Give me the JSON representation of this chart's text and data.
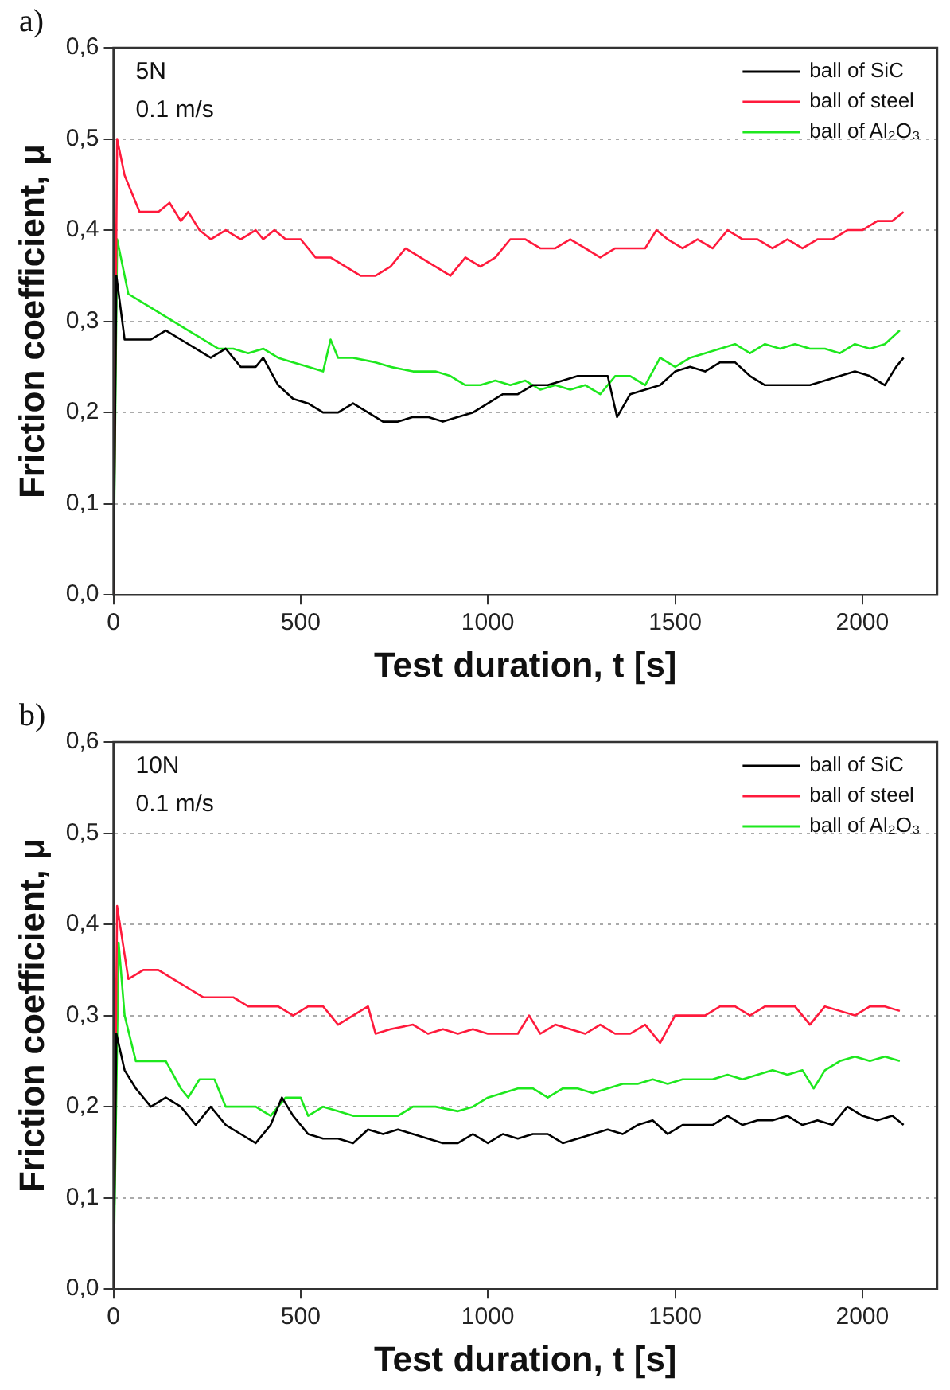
{
  "chart_data": [
    {
      "type": "line",
      "xlabel": "Test duration, t [s]",
      "ylabel": "Friction coefficient, μ",
      "annotations": [
        "a)",
        "5N",
        "0.1 m/s"
      ],
      "xlim": [
        0,
        2200
      ],
      "xticks": [
        0,
        500,
        1000,
        1500,
        2000
      ],
      "ylim": [
        0,
        0.6
      ],
      "yticks": [
        {
          "value": 0,
          "label": "0,0"
        },
        {
          "value": 0.1,
          "label": "0,1"
        },
        {
          "value": 0.2,
          "label": "0,2"
        },
        {
          "value": 0.3,
          "label": "0,3"
        },
        {
          "value": 0.4,
          "label": "0,4"
        },
        {
          "value": 0.5,
          "label": "0,5"
        },
        {
          "value": 0.6,
          "label": "0,6"
        }
      ],
      "grid": "y",
      "legend": "top right",
      "series": [
        {
          "name": "ball of SiC",
          "color": "#000000",
          "x": [
            0,
            8,
            30,
            60,
            100,
            140,
            180,
            220,
            260,
            300,
            340,
            380,
            400,
            440,
            480,
            520,
            560,
            600,
            640,
            680,
            720,
            760,
            800,
            840,
            880,
            920,
            960,
            1000,
            1040,
            1080,
            1120,
            1160,
            1200,
            1240,
            1280,
            1320,
            1345,
            1380,
            1420,
            1460,
            1500,
            1540,
            1580,
            1620,
            1660,
            1700,
            1740,
            1780,
            1820,
            1860,
            1900,
            1940,
            1980,
            2020,
            2060,
            2090,
            2110
          ],
          "values": [
            0,
            0.35,
            0.28,
            0.28,
            0.28,
            0.29,
            0.28,
            0.27,
            0.26,
            0.27,
            0.25,
            0.25,
            0.26,
            0.23,
            0.215,
            0.21,
            0.2,
            0.2,
            0.21,
            0.2,
            0.19,
            0.19,
            0.195,
            0.195,
            0.19,
            0.195,
            0.2,
            0.21,
            0.22,
            0.22,
            0.23,
            0.23,
            0.235,
            0.24,
            0.24,
            0.24,
            0.195,
            0.22,
            0.225,
            0.23,
            0.245,
            0.25,
            0.245,
            0.255,
            0.255,
            0.24,
            0.23,
            0.23,
            0.23,
            0.23,
            0.235,
            0.24,
            0.245,
            0.24,
            0.23,
            0.25,
            0.26
          ]
        },
        {
          "name": "ball of steel",
          "color": "#ff1a3c",
          "x": [
            0,
            10,
            30,
            70,
            120,
            150,
            180,
            200,
            230,
            260,
            300,
            340,
            380,
            400,
            430,
            460,
            500,
            540,
            580,
            620,
            660,
            700,
            740,
            780,
            820,
            860,
            900,
            940,
            980,
            1020,
            1060,
            1100,
            1140,
            1180,
            1220,
            1260,
            1300,
            1340,
            1380,
            1420,
            1450,
            1480,
            1520,
            1560,
            1600,
            1640,
            1680,
            1720,
            1760,
            1800,
            1840,
            1880,
            1920,
            1960,
            2000,
            2040,
            2080,
            2110
          ],
          "values": [
            0,
            0.5,
            0.46,
            0.42,
            0.42,
            0.43,
            0.41,
            0.42,
            0.4,
            0.39,
            0.4,
            0.39,
            0.4,
            0.39,
            0.4,
            0.39,
            0.39,
            0.37,
            0.37,
            0.36,
            0.35,
            0.35,
            0.36,
            0.38,
            0.37,
            0.36,
            0.35,
            0.37,
            0.36,
            0.37,
            0.39,
            0.39,
            0.38,
            0.38,
            0.39,
            0.38,
            0.37,
            0.38,
            0.38,
            0.38,
            0.4,
            0.39,
            0.38,
            0.39,
            0.38,
            0.4,
            0.39,
            0.39,
            0.38,
            0.39,
            0.38,
            0.39,
            0.39,
            0.4,
            0.4,
            0.41,
            0.41,
            0.42
          ]
        },
        {
          "name": "ball of Al₂O₃",
          "color": "#1ee81e",
          "x": [
            0,
            10,
            40,
            80,
            120,
            160,
            200,
            240,
            280,
            320,
            360,
            400,
            440,
            480,
            520,
            560,
            580,
            600,
            640,
            700,
            740,
            800,
            860,
            900,
            940,
            980,
            1020,
            1060,
            1100,
            1140,
            1180,
            1220,
            1260,
            1300,
            1340,
            1380,
            1420,
            1460,
            1500,
            1540,
            1580,
            1620,
            1660,
            1700,
            1740,
            1780,
            1820,
            1860,
            1900,
            1940,
            1980,
            2020,
            2060,
            2100
          ],
          "values": [
            0,
            0.39,
            0.33,
            0.32,
            0.31,
            0.3,
            0.29,
            0.28,
            0.27,
            0.27,
            0.265,
            0.27,
            0.26,
            0.255,
            0.25,
            0.245,
            0.28,
            0.26,
            0.26,
            0.255,
            0.25,
            0.245,
            0.245,
            0.24,
            0.23,
            0.23,
            0.235,
            0.23,
            0.235,
            0.225,
            0.23,
            0.225,
            0.23,
            0.22,
            0.24,
            0.24,
            0.23,
            0.26,
            0.25,
            0.26,
            0.265,
            0.27,
            0.275,
            0.265,
            0.275,
            0.27,
            0.275,
            0.27,
            0.27,
            0.265,
            0.275,
            0.27,
            0.275,
            0.29
          ]
        }
      ]
    },
    {
      "type": "line",
      "xlabel": "Test duration, t [s]",
      "ylabel": "Friction coefficient, μ",
      "annotations": [
        "b)",
        "10N",
        "0.1 m/s"
      ],
      "xlim": [
        0,
        2200
      ],
      "xticks": [
        0,
        500,
        1000,
        1500,
        2000
      ],
      "ylim": [
        0,
        0.6
      ],
      "yticks": [
        {
          "value": 0,
          "label": "0,0"
        },
        {
          "value": 0.1,
          "label": "0,1"
        },
        {
          "value": 0.2,
          "label": "0,2"
        },
        {
          "value": 0.3,
          "label": "0,3"
        },
        {
          "value": 0.4,
          "label": "0,4"
        },
        {
          "value": 0.5,
          "label": "0,5"
        },
        {
          "value": 0.6,
          "label": "0,6"
        }
      ],
      "grid": "y",
      "legend": "top right",
      "series": [
        {
          "name": "ball of SiC",
          "color": "#000000",
          "x": [
            0,
            8,
            30,
            60,
            100,
            140,
            180,
            220,
            260,
            300,
            340,
            380,
            420,
            450,
            480,
            520,
            560,
            600,
            640,
            680,
            720,
            760,
            800,
            840,
            880,
            920,
            960,
            1000,
            1040,
            1080,
            1120,
            1160,
            1200,
            1240,
            1280,
            1320,
            1360,
            1400,
            1440,
            1480,
            1520,
            1560,
            1600,
            1640,
            1680,
            1720,
            1760,
            1800,
            1840,
            1880,
            1920,
            1960,
            2000,
            2040,
            2080,
            2110
          ],
          "values": [
            0,
            0.28,
            0.24,
            0.22,
            0.2,
            0.21,
            0.2,
            0.18,
            0.2,
            0.18,
            0.17,
            0.16,
            0.18,
            0.21,
            0.19,
            0.17,
            0.165,
            0.165,
            0.16,
            0.175,
            0.17,
            0.175,
            0.17,
            0.165,
            0.16,
            0.16,
            0.17,
            0.16,
            0.17,
            0.165,
            0.17,
            0.17,
            0.16,
            0.165,
            0.17,
            0.175,
            0.17,
            0.18,
            0.185,
            0.17,
            0.18,
            0.18,
            0.18,
            0.19,
            0.18,
            0.185,
            0.185,
            0.19,
            0.18,
            0.185,
            0.18,
            0.2,
            0.19,
            0.185,
            0.19,
            0.18
          ]
        },
        {
          "name": "ball of steel",
          "color": "#ff1a3c",
          "x": [
            0,
            10,
            40,
            80,
            120,
            160,
            200,
            240,
            280,
            320,
            360,
            400,
            440,
            480,
            520,
            560,
            600,
            640,
            680,
            700,
            740,
            800,
            840,
            880,
            920,
            960,
            1000,
            1040,
            1080,
            1110,
            1140,
            1180,
            1220,
            1260,
            1300,
            1340,
            1380,
            1420,
            1460,
            1500,
            1540,
            1580,
            1620,
            1660,
            1700,
            1740,
            1780,
            1820,
            1860,
            1900,
            1940,
            1980,
            2020,
            2060,
            2100
          ],
          "values": [
            0,
            0.42,
            0.34,
            0.35,
            0.35,
            0.34,
            0.33,
            0.32,
            0.32,
            0.32,
            0.31,
            0.31,
            0.31,
            0.3,
            0.31,
            0.31,
            0.29,
            0.3,
            0.31,
            0.28,
            0.285,
            0.29,
            0.28,
            0.285,
            0.28,
            0.285,
            0.28,
            0.28,
            0.28,
            0.3,
            0.28,
            0.29,
            0.285,
            0.28,
            0.29,
            0.28,
            0.28,
            0.29,
            0.27,
            0.3,
            0.3,
            0.3,
            0.31,
            0.31,
            0.3,
            0.31,
            0.31,
            0.31,
            0.29,
            0.31,
            0.305,
            0.3,
            0.31,
            0.31,
            0.305
          ]
        },
        {
          "name": "ball of Al₂O₃",
          "color": "#1ee81e",
          "x": [
            0,
            14,
            30,
            60,
            100,
            140,
            180,
            200,
            230,
            270,
            300,
            340,
            380,
            420,
            460,
            500,
            520,
            560,
            600,
            640,
            700,
            760,
            800,
            860,
            920,
            960,
            1000,
            1040,
            1080,
            1120,
            1160,
            1200,
            1240,
            1280,
            1320,
            1360,
            1400,
            1440,
            1480,
            1520,
            1560,
            1600,
            1640,
            1680,
            1720,
            1760,
            1800,
            1840,
            1870,
            1900,
            1940,
            1980,
            2020,
            2060,
            2100
          ],
          "values": [
            0,
            0.38,
            0.3,
            0.25,
            0.25,
            0.25,
            0.22,
            0.21,
            0.23,
            0.23,
            0.2,
            0.2,
            0.2,
            0.19,
            0.21,
            0.21,
            0.19,
            0.2,
            0.195,
            0.19,
            0.19,
            0.19,
            0.2,
            0.2,
            0.195,
            0.2,
            0.21,
            0.215,
            0.22,
            0.22,
            0.21,
            0.22,
            0.22,
            0.215,
            0.22,
            0.225,
            0.225,
            0.23,
            0.225,
            0.23,
            0.23,
            0.23,
            0.235,
            0.23,
            0.235,
            0.24,
            0.235,
            0.24,
            0.22,
            0.24,
            0.25,
            0.255,
            0.25,
            0.255,
            0.25
          ]
        }
      ]
    }
  ]
}
